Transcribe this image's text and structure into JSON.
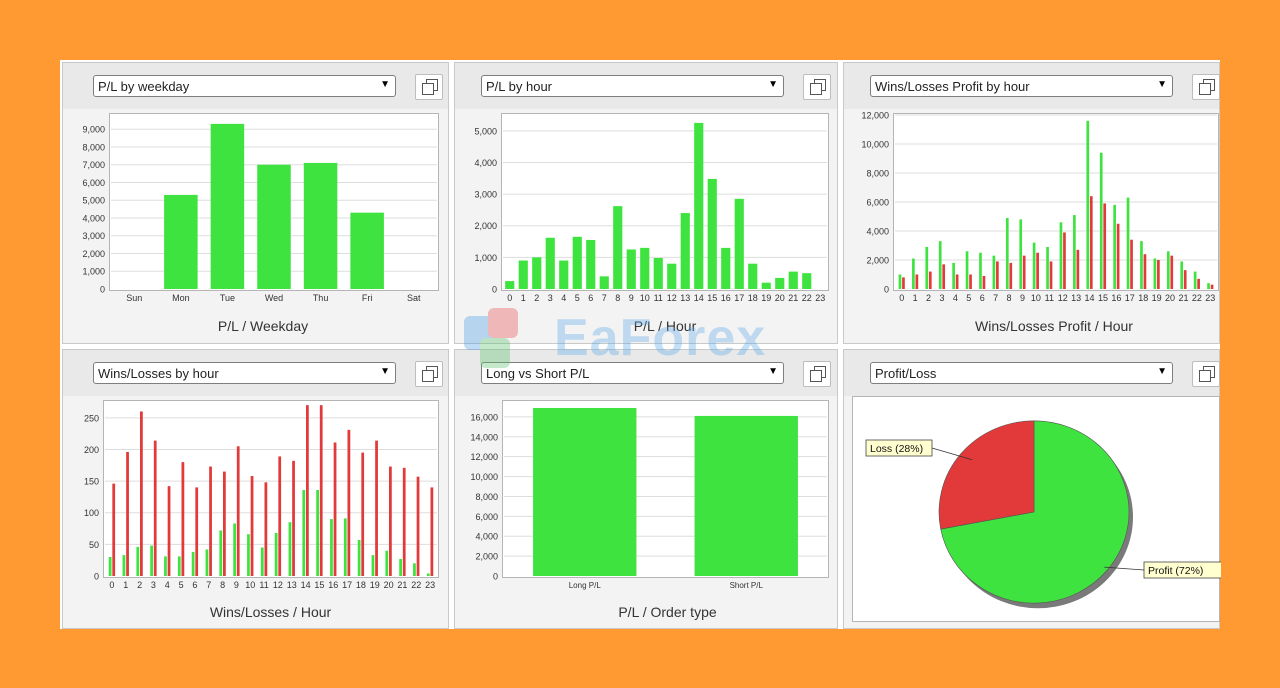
{
  "colors": {
    "background": "#FF9A33",
    "green": "#3FE33F",
    "red": "#E23A3A",
    "grid": "#DDDDDD"
  },
  "watermark": "EaForex",
  "panels": [
    {
      "dropdown": "P/L by weekday",
      "xlabel": "P/L / Weekday",
      "chart_data": {
        "type": "bar",
        "categories": [
          "Sun",
          "Mon",
          "Tue",
          "Wed",
          "Thu",
          "Fri",
          "Sat"
        ],
        "values": [
          0,
          5300,
          9300,
          7000,
          7100,
          4300,
          0
        ],
        "yticks": [
          0,
          1000,
          2000,
          3000,
          4000,
          5000,
          6000,
          7000,
          8000,
          9000
        ],
        "ytick_labels": [
          "0",
          "1,000",
          "2,000",
          "3,000",
          "4,000",
          "5,000",
          "6,000",
          "7,000",
          "8,000",
          "9,000"
        ],
        "ylim": [
          0,
          9800
        ],
        "xlabel": "P/L / Weekday"
      }
    },
    {
      "dropdown": "P/L by hour",
      "xlabel": "P/L / Hour",
      "chart_data": {
        "type": "bar",
        "categories": [
          "0",
          "1",
          "2",
          "3",
          "4",
          "5",
          "6",
          "7",
          "8",
          "9",
          "10",
          "11",
          "12",
          "13",
          "14",
          "15",
          "16",
          "17",
          "18",
          "19",
          "20",
          "21",
          "22",
          "23"
        ],
        "values": [
          250,
          900,
          1000,
          1620,
          900,
          1650,
          1550,
          400,
          2620,
          1250,
          1300,
          980,
          800,
          2400,
          5250,
          3480,
          1300,
          2850,
          800,
          200,
          350,
          550,
          500,
          0
        ],
        "yticks": [
          0,
          1000,
          2000,
          3000,
          4000,
          5000
        ],
        "ytick_labels": [
          "0",
          "1,000",
          "2,000",
          "3,000",
          "4,000",
          "5,000"
        ],
        "ylim": [
          0,
          5500
        ],
        "xlabel": "P/L / Hour"
      }
    },
    {
      "dropdown": "Wins/Losses Profit by hour",
      "xlabel": "Wins/Losses Profit / Hour",
      "chart_data": {
        "type": "bar",
        "categories": [
          "0",
          "1",
          "2",
          "3",
          "4",
          "5",
          "6",
          "7",
          "8",
          "9",
          "10",
          "11",
          "12",
          "13",
          "14",
          "15",
          "16",
          "17",
          "18",
          "19",
          "20",
          "21",
          "22",
          "23"
        ],
        "series": [
          {
            "color": "green",
            "values": [
              1000,
              2100,
              2900,
              3300,
              1800,
              2600,
              2500,
              2300,
              4900,
              4800,
              3200,
              2900,
              4600,
              5100,
              11600,
              9400,
              5800,
              6300,
              3300,
              2100,
              2600,
              1900,
              1200,
              400
            ]
          },
          {
            "color": "red",
            "values": [
              800,
              1000,
              1200,
              1700,
              1000,
              1000,
              900,
              1900,
              1800,
              2300,
              2500,
              1900,
              3900,
              2700,
              6400,
              5900,
              4500,
              3400,
              2400,
              2000,
              2300,
              1300,
              700,
              300
            ]
          }
        ],
        "yticks": [
          0,
          2000,
          4000,
          6000,
          8000,
          10000,
          12000
        ],
        "ytick_labels": [
          "0",
          "2,000",
          "4,000",
          "6,000",
          "8,000",
          "10,000",
          "12,000"
        ],
        "ylim": [
          0,
          12000
        ],
        "xlabel": "Wins/Losses Profit / Hour"
      }
    },
    {
      "dropdown": "Wins/Losses by hour",
      "xlabel": "Wins/Losses / Hour",
      "chart_data": {
        "type": "bar",
        "categories": [
          "0",
          "1",
          "2",
          "3",
          "4",
          "5",
          "6",
          "7",
          "8",
          "9",
          "10",
          "11",
          "12",
          "13",
          "14",
          "15",
          "16",
          "17",
          "18",
          "19",
          "20",
          "21",
          "22",
          "23"
        ],
        "series": [
          {
            "color": "green",
            "values": [
              30,
              33,
              46,
              48,
              31,
              31,
              38,
              42,
              72,
              83,
              66,
              45,
              68,
              85,
              136,
              136,
              90,
              91,
              57,
              33,
              40,
              27,
              20,
              4
            ]
          },
          {
            "color": "red",
            "values": [
              146,
              196,
              260,
              214,
              142,
              180,
              140,
              173,
              165,
              205,
              158,
              148,
              189,
              182,
              270,
              270,
              211,
              231,
              195,
              214,
              173,
              171,
              157,
              140
            ]
          }
        ],
        "yticks": [
          0,
          50,
          100,
          150,
          200,
          250
        ],
        "ytick_labels": [
          "0",
          "50",
          "100",
          "150",
          "200",
          "250"
        ],
        "ylim": [
          0,
          275
        ],
        "xlabel": "Wins/Losses / Hour"
      }
    },
    {
      "dropdown": "Long vs Short P/L",
      "xlabel": "P/L / Order type",
      "chart_data": {
        "type": "bar",
        "categories": [
          "Long P/L",
          "Short P/L"
        ],
        "values": [
          16900,
          16100
        ],
        "yticks": [
          0,
          2000,
          4000,
          6000,
          8000,
          10000,
          12000,
          14000,
          16000
        ],
        "ytick_labels": [
          "0",
          "2,000",
          "4,000",
          "6,000",
          "8,000",
          "10,000",
          "12,000",
          "14,000",
          "16,000"
        ],
        "ylim": [
          0,
          17500
        ],
        "xlabel": "P/L / Order type"
      }
    },
    {
      "dropdown": "Profit/Loss",
      "xlabel": "",
      "chart_data": {
        "type": "pie",
        "slices": [
          {
            "label": "Profit (72%)",
            "value": 72,
            "color": "green"
          },
          {
            "label": "Loss (28%)",
            "value": 28,
            "color": "red"
          }
        ]
      }
    }
  ]
}
